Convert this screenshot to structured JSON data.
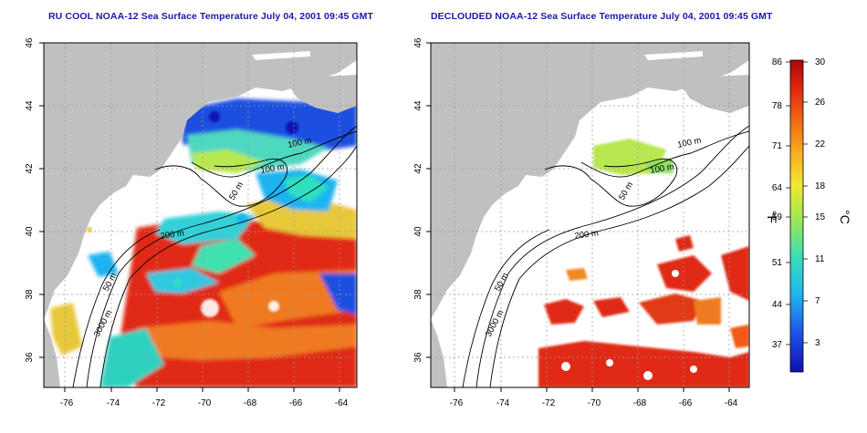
{
  "panels": [
    {
      "id": "left",
      "title": "RU COOL NOAA-12 Sea Surface Temperature July 04, 2001 09:45 GMT",
      "contour_labels": [
        "100 m",
        "100 m",
        "50 m",
        "200 m",
        "50 m",
        "3000 m"
      ]
    },
    {
      "id": "right",
      "title": "DECLOUDED NOAA-12 Sea Surface Temperature July 04, 2001 09:45 GMT",
      "contour_labels": [
        "100 m",
        "100 m",
        "50 m",
        "200 m",
        "50 m",
        "3000 m"
      ]
    }
  ],
  "axes": {
    "x_ticks": [
      "-76",
      "-74",
      "-72",
      "-70",
      "-68",
      "-66",
      "-64"
    ],
    "y_ticks": [
      "46",
      "44",
      "42",
      "40",
      "38",
      "36"
    ],
    "lon_range": [
      -77.3,
      -63.0
    ],
    "lat_range": [
      35.0,
      46.0
    ]
  },
  "colorbar": {
    "fahrenheit_ticks": [
      "86",
      "78",
      "71",
      "64",
      "59",
      "51",
      "44",
      "37"
    ],
    "celsius_ticks": [
      "30",
      "26",
      "22",
      "18",
      "15",
      "11",
      "7",
      "3"
    ],
    "fahrenheit_label": "°F",
    "celsius_label": "°C",
    "range_c": [
      0,
      30
    ]
  },
  "colors": {
    "land": "#c0c0c0",
    "title": "#1a1aa8",
    "contour": "#000000",
    "gridline": "#9a9a9a"
  }
}
